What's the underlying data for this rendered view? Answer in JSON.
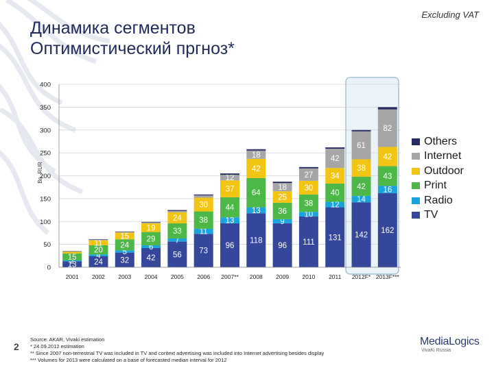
{
  "header": {
    "note": "Excluding VAT",
    "title_line1": "Динамика сегментов",
    "title_line2": "Оптимистический пргноз*"
  },
  "page_number": "2",
  "footnotes": [
    "Source: AKAR, Vivaki estimation",
    "* 24.09.2012 estimation",
    "** Since 2007 non-terrestrial TV was included in TV and context advertising was included into Internet advertising besides display",
    "*** Volumes for 2013 were calculated on a base of forecasted median interval for 2012"
  ],
  "logo": {
    "main": "MediaLogics",
    "sub": "VivaKi Russia"
  },
  "chart_data": {
    "type": "bar",
    "stacked": true,
    "ylabel": "Bn. RUR",
    "ylim": [
      0,
      400
    ],
    "yticks": [
      0,
      50,
      100,
      150,
      200,
      250,
      300,
      350,
      400
    ],
    "categories": [
      "2001",
      "2002",
      "2003",
      "2004",
      "2005",
      "2006",
      "2007**",
      "2008",
      "2009",
      "2010",
      "2011",
      "2012F*",
      "2013F***"
    ],
    "highlight": [
      "2012F*",
      "2013F***"
    ],
    "series": [
      {
        "name": "TV",
        "color": "#34479a",
        "values": [
          13,
          24,
          32,
          42,
          56,
          73,
          96,
          118,
          96,
          111,
          131,
          142,
          162
        ]
      },
      {
        "name": "Radio",
        "color": "#1aa3dc",
        "values": [
          2,
          4,
          5,
          6,
          7,
          11,
          13,
          13,
          9,
          10,
          12,
          14,
          16
        ]
      },
      {
        "name": "Print",
        "color": "#4db848",
        "values": [
          15,
          20,
          24,
          29,
          33,
          38,
          44,
          64,
          36,
          38,
          40,
          42,
          43
        ]
      },
      {
        "name": "Outdoor",
        "color": "#f2c514",
        "values": [
          4,
          11,
          15,
          19,
          24,
          30,
          37,
          42,
          25,
          30,
          34,
          38,
          42
        ]
      },
      {
        "name": "Internet",
        "color": "#a6a6a6",
        "values": [
          0,
          1,
          1,
          2,
          3,
          5,
          12,
          18,
          18,
          27,
          42,
          61,
          82
        ]
      },
      {
        "name": "Others",
        "color": "#262b63",
        "values": [
          1,
          1,
          1,
          1,
          2,
          2,
          3,
          3,
          3,
          3,
          3,
          3,
          5
        ]
      }
    ],
    "labels": [
      [
        "13",
        "2",
        "15",
        "",
        "",
        ""
      ],
      [
        "24",
        "4",
        "20",
        "11",
        "",
        ""
      ],
      [
        "32",
        "5",
        "24",
        "15",
        "",
        ""
      ],
      [
        "42",
        "6",
        "29",
        "19",
        "",
        ""
      ],
      [
        "56",
        "7",
        "33",
        "24",
        "",
        ""
      ],
      [
        "73",
        "11",
        "38",
        "30",
        "",
        ""
      ],
      [
        "96",
        "13",
        "44",
        "37",
        "12",
        ""
      ],
      [
        "118",
        "13",
        "64",
        "42",
        "18",
        ""
      ],
      [
        "96",
        "9",
        "36",
        "25",
        "18",
        ""
      ],
      [
        "111",
        "10",
        "38",
        "30",
        "27",
        ""
      ],
      [
        "131",
        "12",
        "40",
        "34",
        "42",
        ""
      ],
      [
        "142",
        "14",
        "42",
        "38",
        "61",
        ""
      ],
      [
        "162",
        "16",
        "43",
        "42",
        "82",
        ""
      ]
    ],
    "legend": {
      "position": "right",
      "order": [
        "Others",
        "Internet",
        "Outdoor",
        "Print",
        "Radio",
        "TV"
      ]
    }
  }
}
